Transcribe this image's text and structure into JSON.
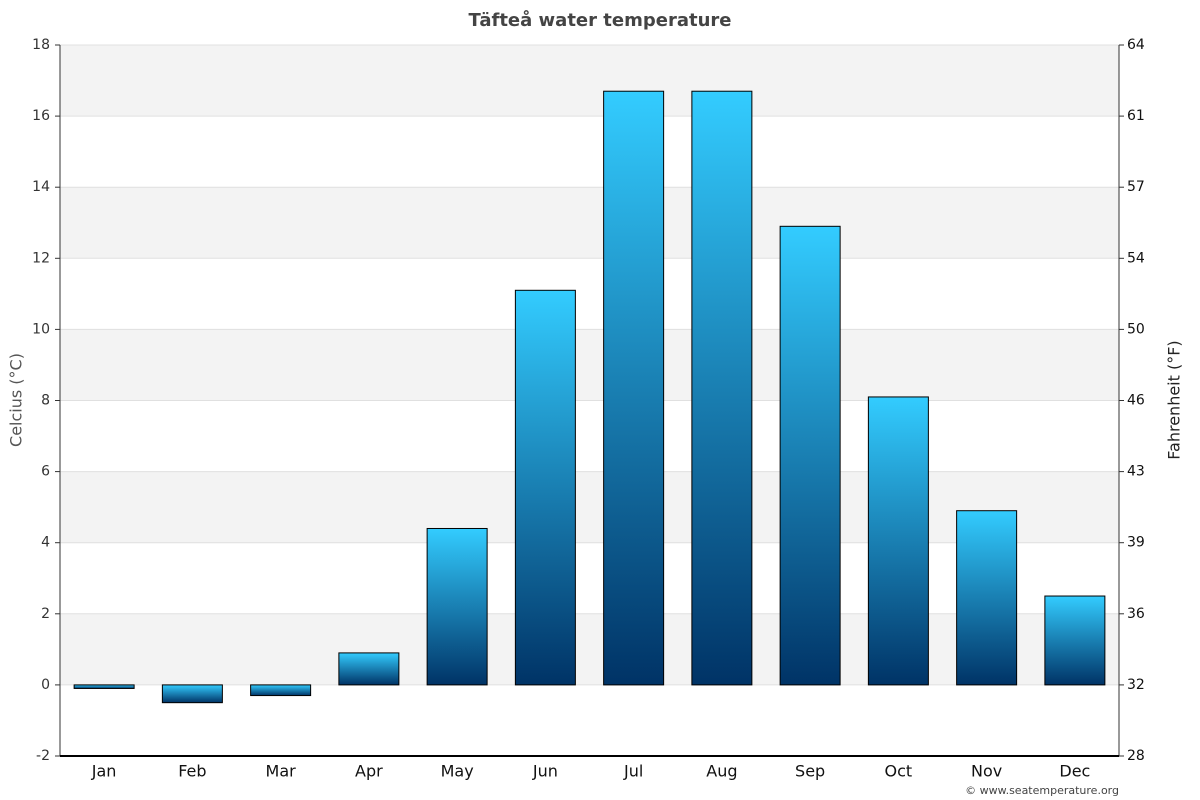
{
  "chart_data": {
    "type": "bar",
    "title": "Täfteå water temperature",
    "categories": [
      "Jan",
      "Feb",
      "Mar",
      "Apr",
      "May",
      "Jun",
      "Jul",
      "Aug",
      "Sep",
      "Oct",
      "Nov",
      "Dec"
    ],
    "values": [
      -0.1,
      -0.5,
      -0.3,
      0.9,
      4.4,
      11.1,
      16.7,
      16.7,
      12.9,
      8.1,
      4.9,
      2.5
    ],
    "gradient": [
      "#33ccff",
      "#003366"
    ],
    "y_label": "Celcius (°C)",
    "y2_label": "Fahrenheit (°F)",
    "ylim": [
      -2,
      18
    ],
    "yticks": [
      -2,
      0,
      2,
      4,
      6,
      8,
      10,
      12,
      14,
      16,
      18
    ],
    "y2lim": [
      28.4,
      64.4
    ],
    "y2ticks": [
      {
        "value": 28.4,
        "label": "28"
      },
      32,
      {
        "value": 35.6,
        "label": "36"
      },
      {
        "value": 39.2,
        "label": "39"
      },
      {
        "value": 42.8,
        "label": "43"
      },
      {
        "value": 46.4,
        "label": "46"
      },
      50,
      {
        "value": 53.6,
        "label": "54"
      },
      {
        "value": 57.2,
        "label": "57"
      },
      {
        "value": 60.8,
        "label": "61"
      },
      {
        "value": 64.4,
        "label": "64"
      }
    ],
    "grid": true,
    "banded": true,
    "credit": "© www.seatemperature.org"
  }
}
